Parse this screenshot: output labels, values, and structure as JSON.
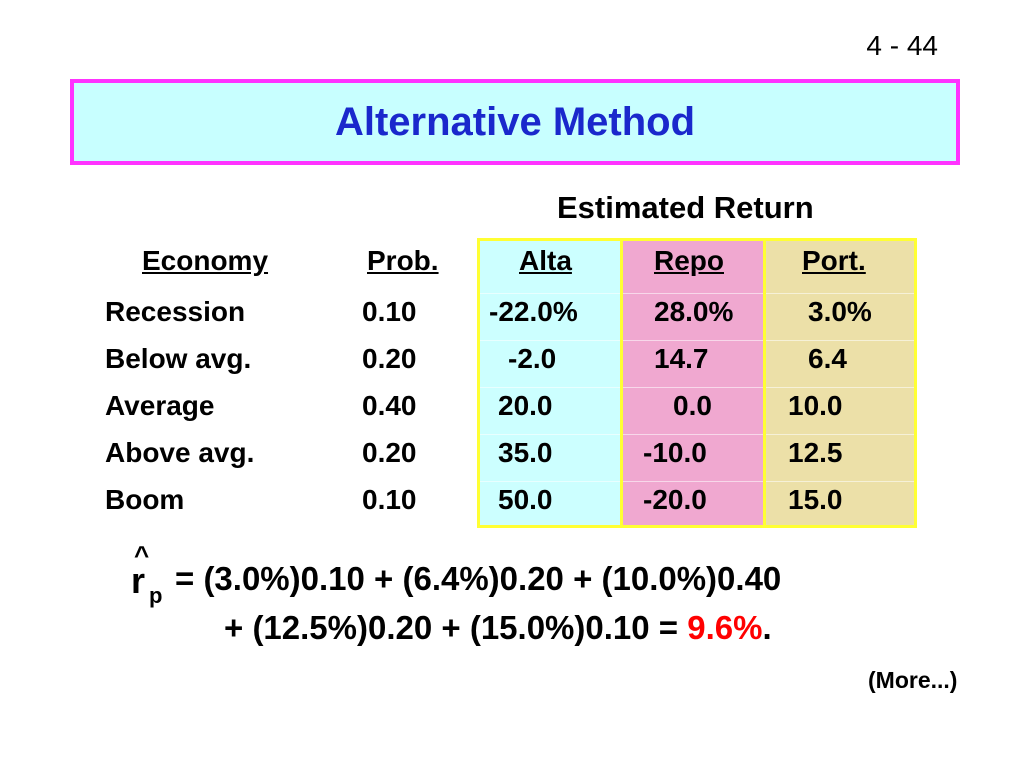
{
  "slide_number": "4 - 44",
  "title": "Alternative Method",
  "estimated_return_label": "Estimated Return",
  "headers": {
    "economy": "Economy",
    "prob": "Prob.",
    "alta": "Alta",
    "repo": "Repo",
    "port": "Port."
  },
  "rows": [
    {
      "economy": "Recession",
      "prob": "0.10",
      "alta": "-22.0%",
      "repo": "28.0%",
      "port": "3.0%"
    },
    {
      "economy": "Below avg.",
      "prob": "0.20",
      "alta": "-2.0",
      "repo": "14.7",
      "port": "6.4"
    },
    {
      "economy": "Average",
      "prob": "0.40",
      "alta": "20.0",
      "repo": "0.0",
      "port": "10.0"
    },
    {
      "economy": "Above avg.",
      "prob": "0.20",
      "alta": "35.0",
      "repo": "-10.0",
      "port": "12.5"
    },
    {
      "economy": "Boom",
      "prob": "0.10",
      "alta": "50.0",
      "repo": "-20.0",
      "port": "15.0"
    }
  ],
  "formula": {
    "hat": "^",
    "r": "r",
    "subscript": "p",
    "line1": "= (3.0%)0.10 + (6.4%)0.20 + (10.0%)0.40",
    "line2_prefix": "+ (12.5%)0.20 + (15.0%)0.10 = ",
    "result": "9.6%",
    "line2_suffix": "."
  },
  "more_label": "(More...)",
  "colors": {
    "title_text": "#1a28cc",
    "title_bg": "#c8ffff",
    "title_border": "#ff33ff",
    "alta_bg": "#ccffff",
    "repo_bg": "#f0a8d0",
    "port_bg": "#ece0a8",
    "column_border": "#ffff33",
    "result": "#ff0000"
  }
}
